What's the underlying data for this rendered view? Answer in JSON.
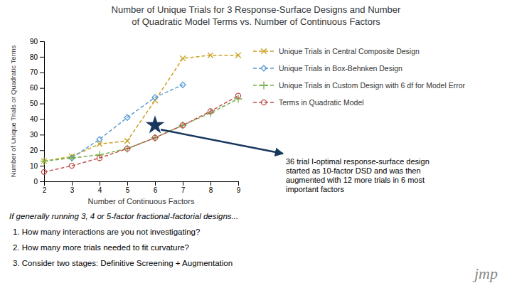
{
  "chart_data": {
    "type": "line",
    "title": "Number of Unique Trials for 3 Response-Surface Designs and Number\nof Quadratic Model Terms vs. Number of Continuous Factors",
    "x_label": "Number of Continuous Factors",
    "y_label": "Number of Unique Trials or Quadratic Terms",
    "series": [
      {
        "name": "Unique Trials in Central Composite Design",
        "color": "#C8A020",
        "marker": "x",
        "line_style": "dashed",
        "x": [
          2,
          3,
          4,
          5,
          6,
          7,
          8,
          9
        ],
        "values": [
          13,
          16,
          24,
          26,
          52,
          79,
          81,
          81
        ]
      },
      {
        "name": "Unique Trials in Box-Behnken Design",
        "color": "#5B9BD5",
        "marker": "diamond",
        "line_style": "dashed",
        "x": [
          3,
          4,
          5,
          6,
          7
        ],
        "values": [
          15,
          27,
          41,
          54,
          62
        ]
      },
      {
        "name": "Unique Trials in Custom Design with 6 df for Model Error",
        "color": "#70AD47",
        "marker": "plus",
        "line_style": "dashed",
        "x": [
          2,
          3,
          4,
          5,
          6,
          7,
          8,
          9
        ],
        "values": [
          13,
          15,
          17,
          21,
          28,
          36,
          44,
          53
        ]
      },
      {
        "name": "Terms in Quadratic Model",
        "color": "#C0504D",
        "marker": "circle",
        "line_style": "dashed",
        "x": [
          2,
          3,
          4,
          5,
          6,
          7,
          8,
          9
        ],
        "values": [
          6,
          10,
          15,
          21,
          28,
          36,
          45,
          55
        ]
      }
    ],
    "annotations": [
      {
        "text": "36 trial I-optimal response-surface design\nstarted as 10-factor DSD and was then\naugmented with 12 more trials in 6 most\nimportant factors",
        "x": 6,
        "y": 36,
        "marker": "star",
        "color": "#17375E"
      }
    ],
    "footnotes": [
      "If generally running 3, 4 or 5-factor fractional-factorial designs...",
      "1.   How many interactions are you not investigating?",
      "2.   How many more trials needed to fit curvature?",
      "3.   Consider two stages: Definitive Screening + Augmentation"
    ],
    "credit": "jmp",
    "xlim": [
      2,
      9
    ],
    "ylim": [
      0,
      90
    ],
    "xticks": [
      2,
      3,
      4,
      5,
      6,
      7,
      8,
      9
    ],
    "yticks": [
      0,
      10,
      20,
      30,
      40,
      50,
      60,
      70,
      80,
      90
    ],
    "grid": false,
    "legend": "right"
  }
}
